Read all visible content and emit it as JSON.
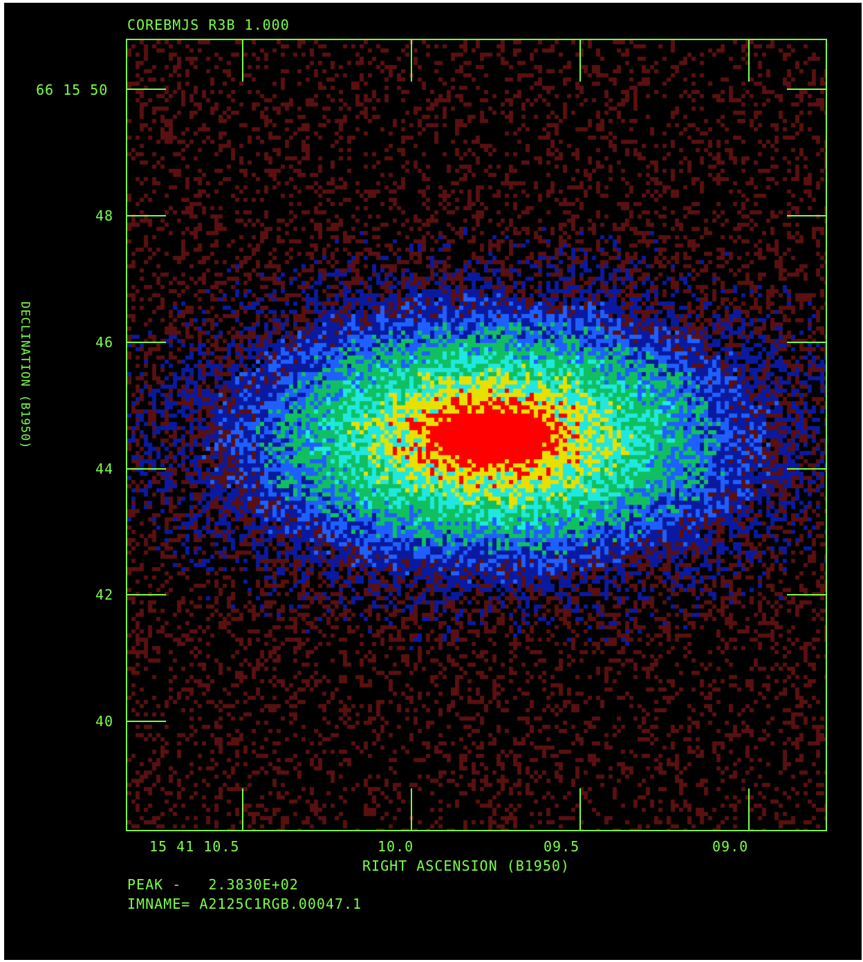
{
  "header": {
    "title": "COREBMJS R3B 1.000"
  },
  "axes": {
    "x_label": "RIGHT ASCENSION (B1950)",
    "y_label": "DECLINATION (B1950)",
    "x_ticks": [
      "15 41 10.5",
      "10.0",
      "09.5",
      "09.0"
    ],
    "y_ticks": [
      "66 15 50",
      "48",
      "46",
      "44",
      "42",
      "40"
    ]
  },
  "footer": {
    "peak": "PEAK -   2.3830E+02",
    "imname": "IMNAME= A2125C1RGB.00047.1"
  },
  "colors": {
    "annotation": "#7cff4a",
    "background": "#000000",
    "colormap": [
      "#000000",
      "#5a1010",
      "#0a1aa0",
      "#1e60ff",
      "#10c060",
      "#20e8e0",
      "#e8e000",
      "#ff0000"
    ]
  }
}
